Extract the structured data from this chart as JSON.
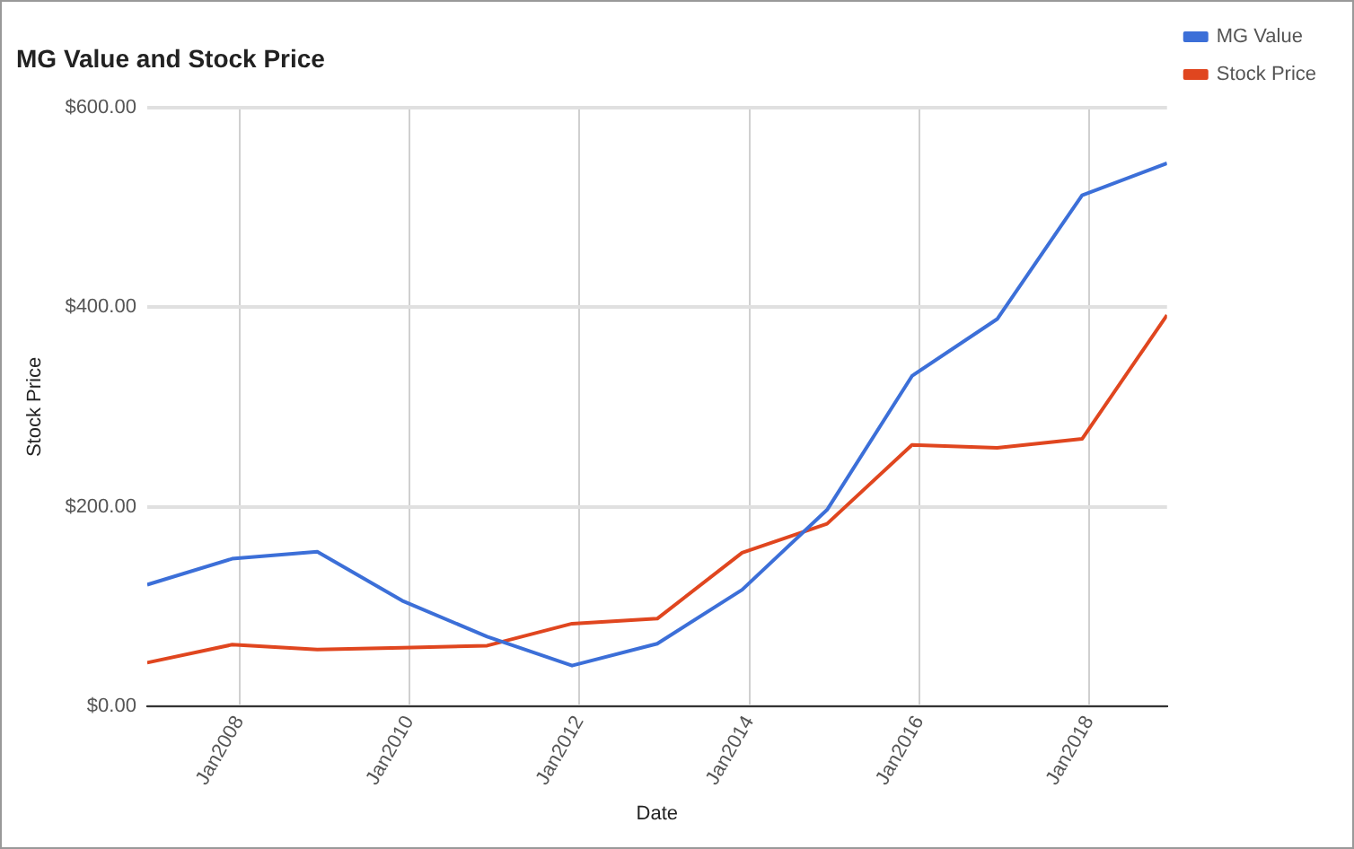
{
  "chart_data": {
    "type": "line",
    "title": "MG Value and Stock Price",
    "xlabel": "Date",
    "ylabel": "Stock Price",
    "x": [
      "2006-12",
      "2007-12",
      "2008-12",
      "2009-12",
      "2010-12",
      "2011-12",
      "2012-12",
      "2013-12",
      "2014-12",
      "2015-12",
      "2016-12",
      "2017-12",
      "2018-12"
    ],
    "series": [
      {
        "name": "MG Value",
        "color": "#3c6fd8",
        "values": [
          122,
          148,
          155,
          106,
          70,
          41,
          63,
          117,
          197,
          331,
          388,
          512,
          544
        ]
      },
      {
        "name": "Stock Price",
        "color": "#e0461f",
        "values": [
          44,
          62,
          57,
          59,
          61,
          83,
          88,
          154,
          183,
          262,
          259,
          268,
          392
        ]
      }
    ],
    "xlim": [
      "2006-12",
      "2018-12"
    ],
    "xticks": [
      {
        "value": "2008-01",
        "label": "Jan2008"
      },
      {
        "value": "2010-01",
        "label": "Jan2010"
      },
      {
        "value": "2012-01",
        "label": "Jan2012"
      },
      {
        "value": "2014-01",
        "label": "Jan2014"
      },
      {
        "value": "2016-01",
        "label": "Jan2016"
      },
      {
        "value": "2018-01",
        "label": "Jan2018"
      }
    ],
    "ylim": [
      0,
      600
    ],
    "yticks": [
      {
        "value": 0,
        "label": "$0.00"
      },
      {
        "value": 200,
        "label": "$200.00"
      },
      {
        "value": 400,
        "label": "$400.00"
      },
      {
        "value": 600,
        "label": "$600.00"
      }
    ],
    "grid": true,
    "legend": "top right",
    "marker": "none",
    "line_style": "solid"
  }
}
